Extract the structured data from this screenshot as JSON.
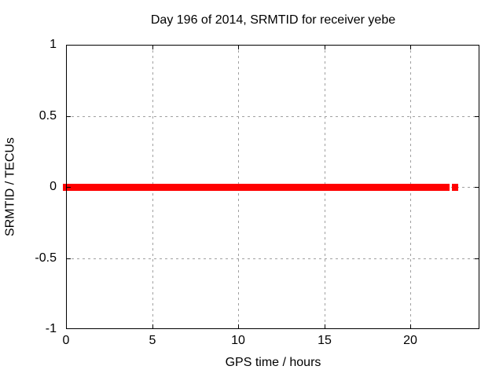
{
  "chart_data": {
    "type": "scatter",
    "title": "Day 196 of 2014, SRMTID for receiver yebe",
    "xlabel": "GPS time / hours",
    "ylabel": "SRMTID / TECUs",
    "xlim": [
      0,
      24
    ],
    "ylim": [
      -1,
      1
    ],
    "x_ticks": [
      {
        "value": 0,
        "label": "0"
      },
      {
        "value": 5,
        "label": "5"
      },
      {
        "value": 10,
        "label": "10"
      },
      {
        "value": 15,
        "label": "15"
      },
      {
        "value": 20,
        "label": "20"
      }
    ],
    "y_ticks": [
      {
        "value": 1,
        "label": "1"
      },
      {
        "value": 0.5,
        "label": "0.5"
      },
      {
        "value": 0,
        "label": "0"
      },
      {
        "value": -0.5,
        "label": "-0.5"
      },
      {
        "value": -1,
        "label": "-1"
      }
    ],
    "grid": {
      "show": true,
      "color": "#a0a0a0",
      "style": "dashed"
    },
    "legend": "none",
    "series": [
      {
        "name": "SRMTID",
        "color": "#ff0000",
        "y_value": 0,
        "segments_hours": [
          [
            0,
            22.1
          ],
          [
            22.6,
            22.6
          ]
        ],
        "marker_thickness_px": 9,
        "marker_halfwidth_px": 4,
        "description": "Constant value 0 TECUs from 0 h to about 22.1 h, small gap, then one last point near 22.6 h"
      }
    ]
  },
  "colors": {
    "background": "#ffffff",
    "border": "#000000",
    "series_red": "#ff0000",
    "grid": "#a0a0a0"
  }
}
